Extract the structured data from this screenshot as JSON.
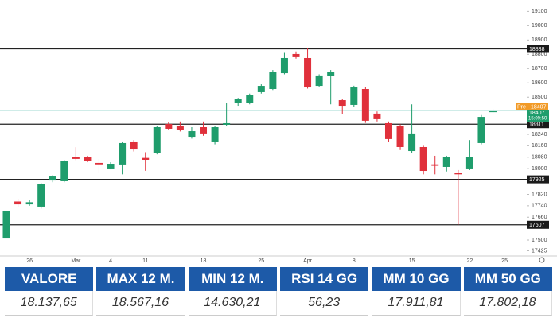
{
  "chart_data": {
    "type": "candlestick",
    "categories": [
      null,
      null,
      "26",
      null,
      null,
      null,
      "Mar",
      null,
      null,
      "4",
      null,
      null,
      "11",
      null,
      null,
      null,
      null,
      "18",
      null,
      null,
      null,
      null,
      "25",
      null,
      null,
      null,
      "Apr",
      null,
      null,
      null,
      "8",
      null,
      null,
      null,
      null,
      "15",
      null,
      null,
      null,
      null,
      "22",
      null,
      null,
      "25"
    ],
    "open": [
      17511,
      17770,
      17750,
      17734,
      17917,
      17912,
      18079,
      18079,
      18040,
      18001,
      18029,
      18190,
      18075,
      18112,
      18312,
      18301,
      18223,
      18290,
      18190,
      18307,
      18457,
      18457,
      18535,
      18557,
      18668,
      18802,
      18774,
      18579,
      18646,
      18479,
      18446,
      18557,
      18385,
      18318,
      18301,
      18123,
      18151,
      18030,
      18012,
      17970,
      18001,
      18179,
      18395,
      null
    ],
    "high": [
      17706,
      17790,
      17780,
      17900,
      17955,
      18060,
      18150,
      18090,
      18068,
      18045,
      18190,
      18200,
      18115,
      18300,
      18325,
      18330,
      18290,
      18330,
      18300,
      18460,
      18495,
      18525,
      18590,
      18690,
      18810,
      18820,
      18845,
      18660,
      18690,
      18490,
      18580,
      18570,
      18400,
      18330,
      18310,
      18450,
      18160,
      18090,
      18090,
      17990,
      18200,
      18375,
      18420,
      null
    ],
    "low": [
      17511,
      17730,
      17740,
      17720,
      17905,
      17905,
      18060,
      18045,
      17970,
      17995,
      17960,
      18120,
      17985,
      18100,
      18270,
      18260,
      18210,
      18230,
      18170,
      18300,
      18440,
      18450,
      18525,
      18550,
      18660,
      18770,
      18560,
      18570,
      18450,
      18380,
      18430,
      18320,
      18330,
      18190,
      18130,
      18110,
      17960,
      17960,
      17980,
      17607,
      17990,
      18170,
      18390,
      null
    ],
    "close": [
      17706,
      17750,
      17765,
      17890,
      17945,
      18051,
      18068,
      18051,
      18030,
      18034,
      18179,
      18134,
      18062,
      18290,
      18279,
      18268,
      18262,
      18246,
      18290,
      18318,
      18485,
      18513,
      18579,
      18679,
      18774,
      18780,
      18568,
      18652,
      18679,
      18440,
      18568,
      18335,
      18346,
      18207,
      18151,
      18246,
      17984,
      18020,
      18079,
      17960,
      18079,
      18362,
      18407,
      null
    ],
    "up_color": "#1f9d6c",
    "down_color": "#e0303b",
    "ylim": [
      17400,
      19180
    ],
    "yticks": [
      19100,
      19000,
      18900,
      18800,
      18700,
      18600,
      18500,
      18240,
      18160,
      18080,
      18000,
      17820,
      17740,
      17660,
      17500,
      17425
    ],
    "levels": [
      18838,
      18311,
      17925,
      17607
    ],
    "current": {
      "tag": "Pre",
      "value": 18407,
      "timer": "15:09:50"
    }
  },
  "table": {
    "headers": [
      "VALORE",
      "MAX 12 M.",
      "MIN 12 M.",
      "RSI 14 GG",
      "MM 10 GG",
      "MM 50 GG"
    ],
    "values": [
      "18.137,65",
      "18.567,16",
      "14.630,21",
      "56,23",
      "17.911,81",
      "17.802,18"
    ]
  }
}
